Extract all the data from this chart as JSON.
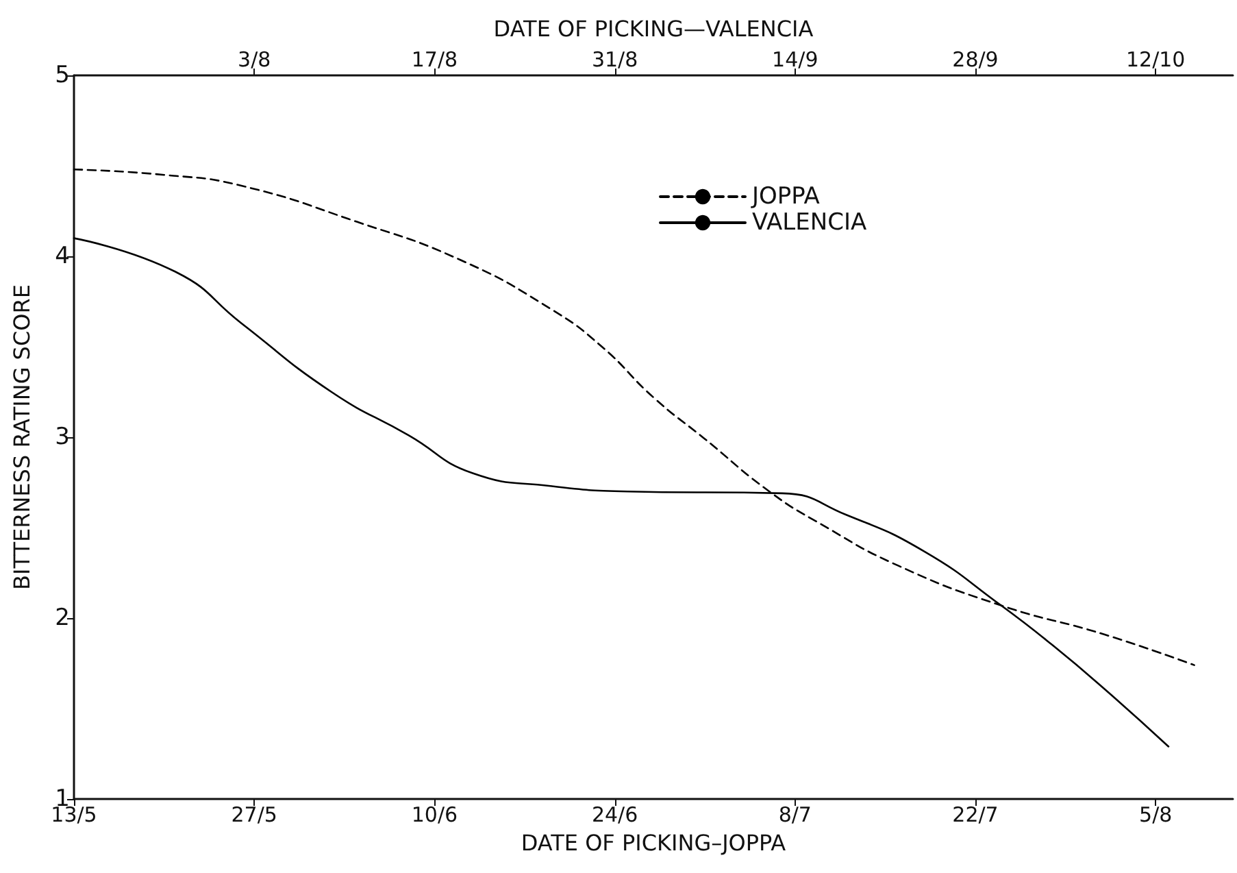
{
  "chart_data": {
    "type": "line",
    "xlabel": "DATE OF PICKING–JOPPA",
    "x2label": "DATE OF PICKING—VALENCIA",
    "ylabel": "BITTERNESS RATING SCORE",
    "xlim": [
      "--05-13",
      "--08-11"
    ],
    "xticks": [
      {
        "value": "--05-13",
        "label": "13/5"
      },
      {
        "value": "--05-27",
        "label": "27/5"
      },
      {
        "value": "--06-10",
        "label": "10/6"
      },
      {
        "value": "--06-24",
        "label": "24/6"
      },
      {
        "value": "--07-08",
        "label": "8/7"
      },
      {
        "value": "--07-22",
        "label": "22/7"
      },
      {
        "value": "--08-05",
        "label": "5/8"
      }
    ],
    "x2lim": [
      "--07-20",
      "--10-18"
    ],
    "x2ticks": [
      {
        "value": "--08-03",
        "label": "3/8"
      },
      {
        "value": "--08-17",
        "label": "17/8"
      },
      {
        "value": "--08-31",
        "label": "31/8"
      },
      {
        "value": "--09-14",
        "label": "14/9"
      },
      {
        "value": "--09-28",
        "label": "28/9"
      },
      {
        "value": "--10-12",
        "label": "12/10"
      }
    ],
    "ylim": [
      1,
      5
    ],
    "yticks": [
      1,
      2,
      3,
      4,
      5
    ],
    "grid": false,
    "legend": "top right",
    "marker": "none",
    "series": [
      {
        "name": "JOPPA",
        "color": "#000000",
        "line_style": "dashed",
        "x": [
          "--05-13",
          "--05-20",
          "--05-26",
          "--06-04",
          "--06-12",
          "--06-19",
          "--06-23",
          "--06-27",
          "--07-01",
          "--07-06",
          "--07-10",
          "--07-16",
          "--07-24",
          "--08-01",
          "--08-08"
        ],
        "values": [
          4.48,
          4.45,
          4.39,
          4.19,
          3.98,
          3.71,
          3.5,
          3.22,
          2.99,
          2.7,
          2.52,
          2.29,
          2.07,
          1.91,
          1.74
        ]
      },
      {
        "name": "VALENCIA",
        "color": "#000000",
        "line_style": "solid",
        "axis": "x2",
        "x": [
          "--07-20",
          "--07-28",
          "--08-02",
          "--08-09",
          "--08-15",
          "--08-20",
          "--08-26",
          "--09-01",
          "--09-13",
          "--09-18",
          "--09-24",
          "--09-30",
          "--10-04",
          "--10-08",
          "--10-13"
        ],
        "values": [
          4.1,
          3.91,
          3.63,
          3.25,
          3.01,
          2.8,
          2.73,
          2.7,
          2.69,
          2.57,
          2.37,
          2.07,
          1.85,
          1.61,
          1.29
        ]
      }
    ]
  }
}
